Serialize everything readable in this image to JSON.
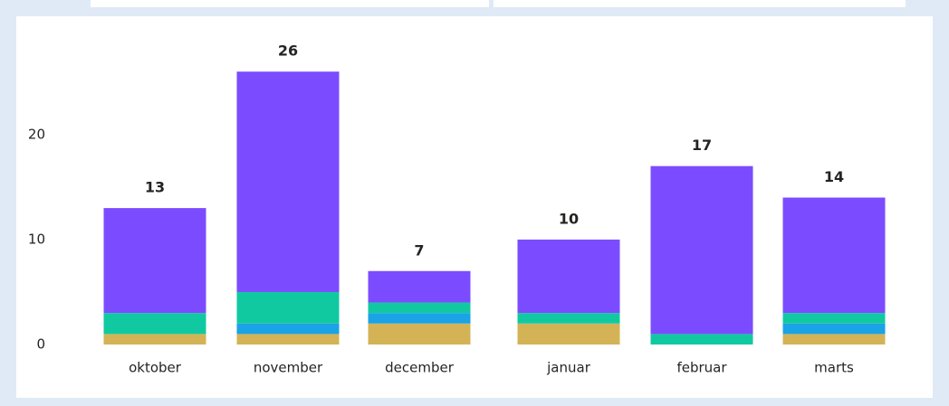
{
  "chart_data": {
    "type": "stacked_bar",
    "categories": [
      "oktober",
      "november",
      "december",
      "januar",
      "februar",
      "marts"
    ],
    "series": [
      {
        "color": "#d4b356",
        "values": [
          1,
          1,
          2,
          2,
          0,
          1
        ]
      },
      {
        "color": "#1aa3e6",
        "values": [
          0,
          1,
          1,
          0,
          0,
          1
        ]
      },
      {
        "color": "#11c9a1",
        "values": [
          2,
          3,
          1,
          1,
          1,
          1
        ]
      },
      {
        "color": "#7b4cff",
        "values": [
          10,
          21,
          3,
          7,
          16,
          11
        ]
      }
    ],
    "totals": [
      13,
      26,
      7,
      10,
      17,
      14
    ],
    "ylim": [
      0,
      28
    ],
    "yticks": [
      0,
      10,
      20
    ],
    "grid": false
  }
}
